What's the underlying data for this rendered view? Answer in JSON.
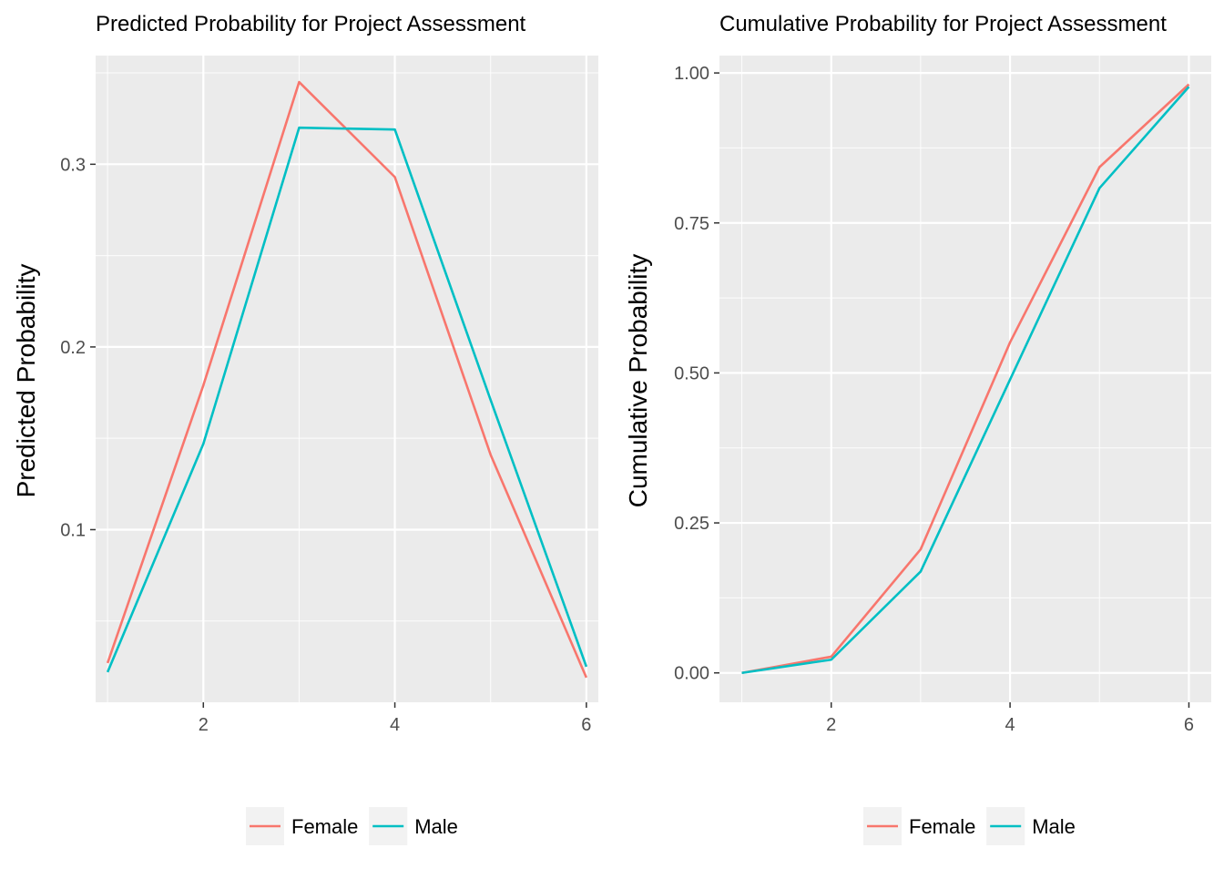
{
  "colors": {
    "panel_bg": "#ebebeb",
    "grid_major": "#ffffff",
    "tick_text": "#4d4d4d",
    "tick_mark": "#333333",
    "legend_key_bg": "#f2f2f2"
  },
  "chart_data": [
    {
      "type": "line",
      "title": "Predicted Probability for Project Assessment",
      "xlabel": "",
      "ylabel": "Predicted Probability",
      "x": [
        1,
        2,
        3,
        4,
        5,
        6
      ],
      "xlim": [
        0.875,
        6.125
      ],
      "ylim": [
        0.0055,
        0.3595
      ],
      "xticks": [
        2,
        4,
        6
      ],
      "xtick_labels": [
        "2",
        "4",
        "6"
      ],
      "yticks": [
        0.1,
        0.2,
        0.3
      ],
      "ytick_labels": [
        "0.1",
        "0.2",
        "0.3"
      ],
      "grid": true,
      "legend_position": "bottom",
      "series": [
        {
          "name": "Female",
          "color": "#F8766D",
          "values": [
            0.027,
            0.179,
            0.345,
            0.293,
            0.141,
            0.019
          ]
        },
        {
          "name": "Male",
          "color": "#00BFC4",
          "values": [
            0.022,
            0.147,
            0.32,
            0.319,
            0.171,
            0.025
          ]
        }
      ]
    },
    {
      "type": "line",
      "title": "Cumulative Probability for Project Assessment",
      "xlabel": "",
      "ylabel": "Cumulative Probability",
      "x": [
        1,
        2,
        3,
        4,
        5,
        6
      ],
      "xlim": [
        0.75,
        6.25
      ],
      "ylim": [
        -0.049,
        1.029
      ],
      "xticks": [
        2,
        4,
        6
      ],
      "xtick_labels": [
        "2",
        "4",
        "6"
      ],
      "yticks": [
        0,
        0.25,
        0.5,
        0.75,
        1.0
      ],
      "ytick_labels": [
        "0.00",
        "0.25",
        "0.50",
        "0.75",
        "1.00"
      ],
      "grid": true,
      "legend_position": "bottom",
      "series": [
        {
          "name": "Female",
          "color": "#F8766D",
          "values": [
            0.0,
            0.027,
            0.206,
            0.551,
            0.843,
            0.981
          ]
        },
        {
          "name": "Male",
          "color": "#00BFC4",
          "values": [
            0.0,
            0.022,
            0.169,
            0.489,
            0.808,
            0.977
          ]
        }
      ]
    }
  ]
}
